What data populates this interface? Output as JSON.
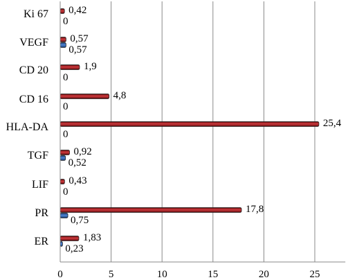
{
  "chart_data": {
    "type": "bar",
    "orientation": "horizontal",
    "title": "",
    "xlabel": "",
    "ylabel": "",
    "categories": [
      "Ki 67",
      "VEGF",
      "CD 20",
      "CD 16",
      "HLA-DA",
      "TGF",
      "LIF",
      "PR",
      "ER"
    ],
    "series": [
      {
        "color": "#a11d21",
        "values": [
          0.42,
          0.57,
          1.9,
          4.8,
          25.4,
          0.92,
          0.43,
          17.8,
          1.83
        ]
      },
      {
        "color": "#2e5fa6",
        "values": [
          0,
          0.57,
          0,
          0,
          0,
          0.52,
          0,
          0.75,
          0.23
        ]
      }
    ],
    "value_labels": [
      [
        "0,42",
        "0,57",
        "1,9",
        "4,8",
        "25,4",
        "0,92",
        "0,43",
        "17,8",
        "1,83"
      ],
      [
        "0",
        "0,57",
        "0",
        "0",
        "0",
        "0,52",
        "0",
        "0,75",
        "0,23"
      ]
    ],
    "xlim": [
      0,
      28
    ],
    "xticks": [
      0,
      5,
      10,
      15,
      20,
      25
    ],
    "xtick_labels": [
      "0",
      "5",
      "10",
      "15",
      "20",
      "25"
    ],
    "grid": "vertical",
    "legend": "none",
    "colors": {
      "gridline": "#888888",
      "axis": "#888888",
      "bar_edge": "#222222"
    }
  }
}
